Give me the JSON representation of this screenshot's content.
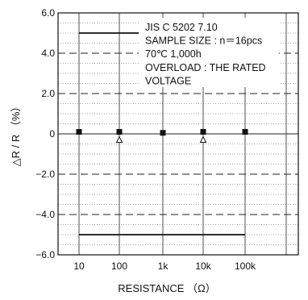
{
  "chart_data": {
    "type": "scatter",
    "ylabel": "△R / R （%）",
    "xlabel": "RESISTANCE （Ω）",
    "categories": [
      "10",
      "100",
      "1k",
      "10k",
      "100k"
    ],
    "y_ticks": [
      "6.0",
      "4.0",
      "2.0",
      "0",
      "−2.0",
      "−4.0",
      "−6.0"
    ],
    "y_tick_values": [
      6,
      4,
      2,
      0,
      -2,
      -4,
      -6
    ],
    "ylim": [
      -6,
      6
    ],
    "grid": true,
    "annotation_lines": [
      "JIS C 5202 7.10",
      "SAMPLE SIZE : n＝16pcs",
      "70℃ 1,000h",
      "OVERLOAD : THE RATED",
      "VOLTAGE"
    ],
    "limits": {
      "upper": 5,
      "lower": -5
    },
    "series": [
      {
        "marker": "square",
        "values": [
          0.1,
          0.1,
          0.05,
          0.1,
          0.1
        ]
      },
      {
        "marker": "triangle",
        "values": [
          null,
          -0.3,
          null,
          -0.3,
          null
        ]
      }
    ]
  },
  "colors": {
    "line": "#111111",
    "grid": "#222222",
    "background": "#ffffff"
  }
}
